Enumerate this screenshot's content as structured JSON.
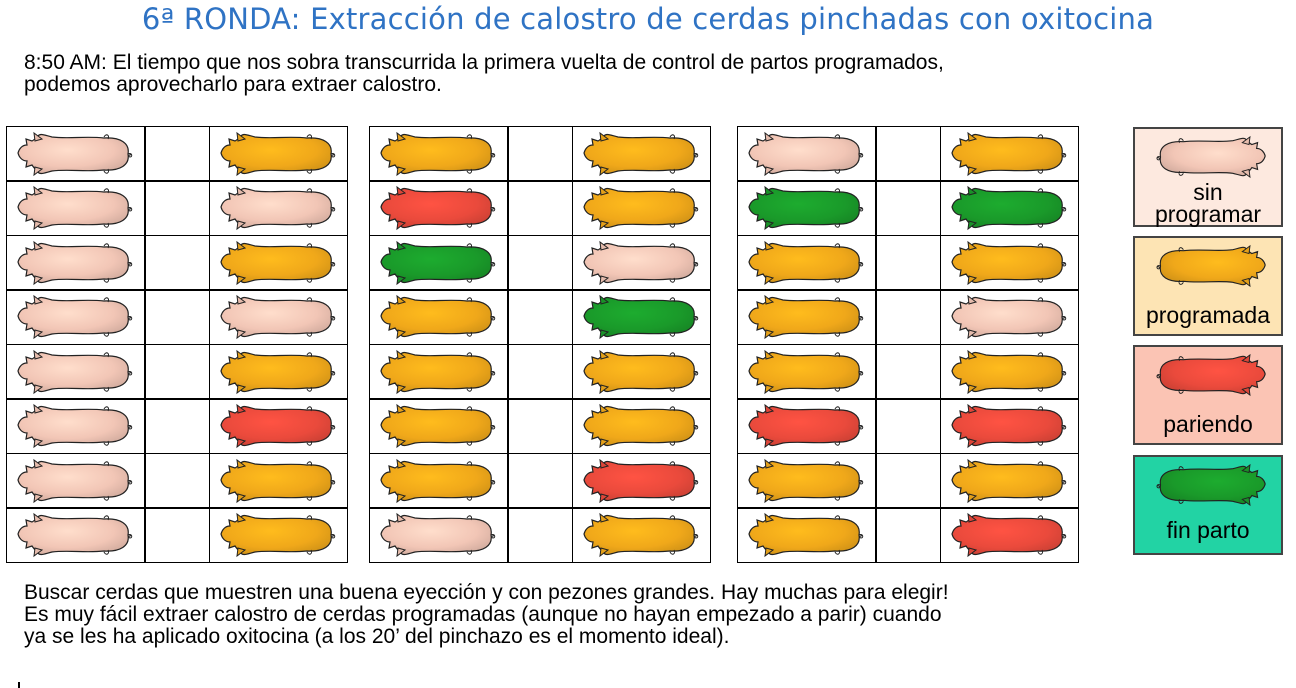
{
  "title": "6ª RONDA: Extracción de calostro de cerdas pinchadas con oxitocina",
  "intro": [
    "8:50 AM: El tiempo que nos sobra transcurrida la primera vuelta de control de partos programados,",
    "podemos aprovecharlo para extraer calostro."
  ],
  "status_colors": {
    "sin_programar": "#f2c6b6",
    "programada": "#f0a81a",
    "pariendo": "#ea4a3c",
    "fin_parto": "#1a9a2a"
  },
  "blocks": [
    {
      "left": [
        "sin_programar",
        "sin_programar",
        "sin_programar",
        "sin_programar",
        "sin_programar",
        "sin_programar",
        "sin_programar",
        "sin_programar"
      ],
      "right": [
        "programada",
        "sin_programar",
        "programada",
        "sin_programar",
        "programada",
        "pariendo",
        "programada",
        "programada"
      ]
    },
    {
      "left": [
        "programada",
        "pariendo",
        "fin_parto",
        "programada",
        "programada",
        "programada",
        "programada",
        "sin_programar"
      ],
      "right": [
        "programada",
        "programada",
        "sin_programar",
        "fin_parto",
        "programada",
        "programada",
        "pariendo",
        "programada"
      ]
    },
    {
      "left": [
        "sin_programar",
        "fin_parto",
        "programada",
        "programada",
        "programada",
        "pariendo",
        "programada",
        "programada"
      ],
      "right": [
        "programada",
        "fin_parto",
        "programada",
        "sin_programar",
        "programada",
        "pariendo",
        "programada",
        "pariendo"
      ]
    }
  ],
  "legend": {
    "sin_programar": {
      "lines": [
        "sin",
        "programar"
      ],
      "bg": "#fde9df"
    },
    "programada": {
      "lines": [
        "programada"
      ],
      "bg": "#fde4b4"
    },
    "pariendo": {
      "lines": [
        "pariendo"
      ],
      "bg": "#fbc4b4"
    },
    "fin_parto": {
      "lines": [
        "fin parto"
      ],
      "bg": "#22d3a4"
    }
  },
  "outro": [
    "Buscar cerdas que muestren una buena eyección y con pezones grandes. Hay muchas para elegir!",
    "Es muy fácil extraer calostro de cerdas programadas (aunque no hayan empezado a parir) cuando",
    "ya se les ha aplicado oxitocina (a los 20’ del pinchazo es el momento ideal)."
  ]
}
